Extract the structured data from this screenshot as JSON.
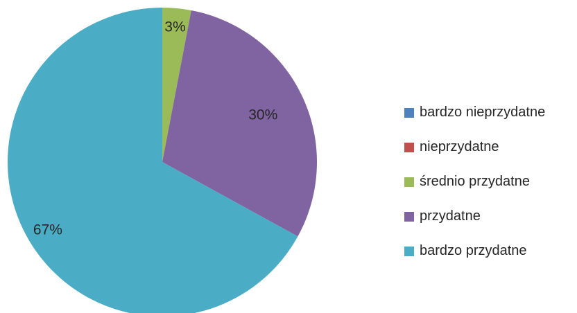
{
  "chart_data": {
    "type": "pie",
    "title": "",
    "legend_position": "right",
    "start_angle": "top, clockwise",
    "slices": [
      {
        "label": "bardzo nieprzydatne",
        "value": 0,
        "display": "",
        "color": "#4F81BD"
      },
      {
        "label": "nieprzydatne",
        "value": 0,
        "display": "",
        "color": "#C0504D"
      },
      {
        "label": "średnio przydatne",
        "value": 3,
        "display": "3%",
        "color": "#9BBB59"
      },
      {
        "label": "przydatne",
        "value": 30,
        "display": "30%",
        "color": "#8064A2"
      },
      {
        "label": "bardzo przydatne",
        "value": 67,
        "display": "67%",
        "color": "#4BACC6"
      }
    ]
  }
}
